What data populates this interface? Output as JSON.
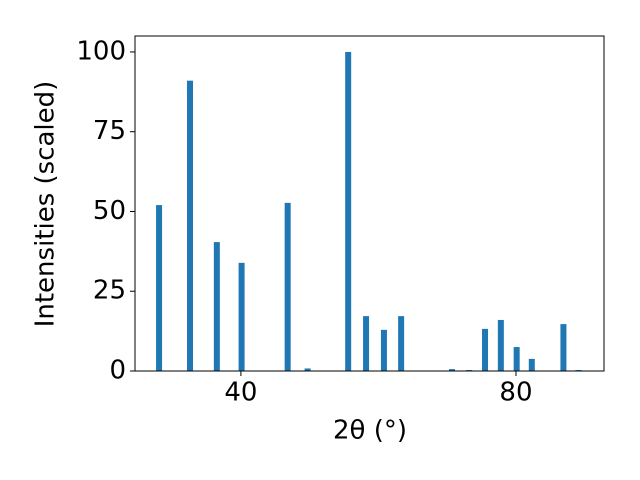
{
  "chart_data": {
    "type": "bar",
    "xlabel": "2θ (°)",
    "ylabel": "Intensities (scaled)",
    "x": [
      28.1,
      32.6,
      36.5,
      40.1,
      46.8,
      49.7,
      55.6,
      58.2,
      60.8,
      63.3,
      70.7,
      73.2,
      75.5,
      77.8,
      80.1,
      82.3,
      86.9,
      89.1
    ],
    "values": [
      52,
      91,
      40.4,
      33.9,
      52.7,
      0.8,
      100,
      17.2,
      12.9,
      17.2,
      0.6,
      0.3,
      13.2,
      16,
      7.5,
      3.8,
      14.7,
      0.3
    ],
    "color": "#1f77b4",
    "xlim": [
      24.6,
      92.8
    ],
    "xticks": [
      40,
      80
    ],
    "ylim": [
      0,
      105
    ],
    "yticks": [
      0,
      25,
      50,
      75,
      100
    ]
  }
}
